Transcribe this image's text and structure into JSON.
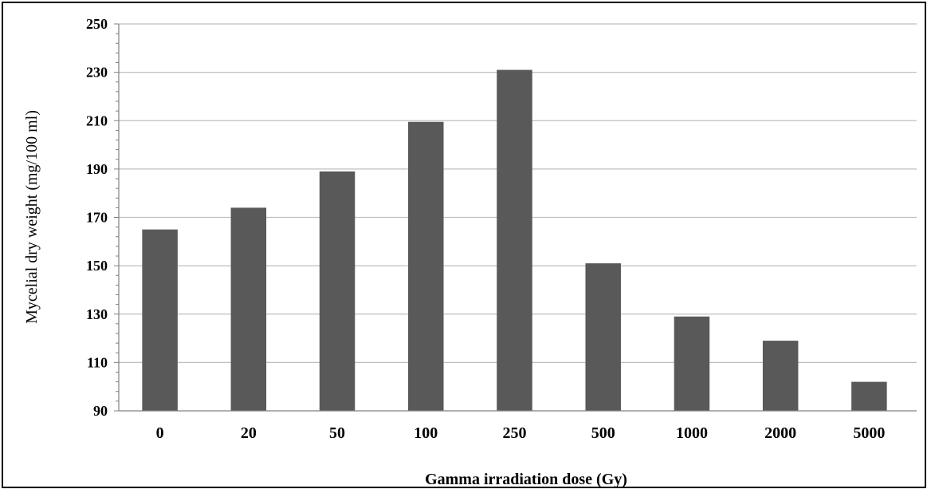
{
  "chart_data": {
    "type": "bar",
    "title": "",
    "xlabel": "Gamma irradiation dose (Gy)",
    "ylabel": "Mycelial dry weight (mg/100 ml)",
    "categories": [
      "0",
      "20",
      "50",
      "100",
      "250",
      "500",
      "1000",
      "2000",
      "5000"
    ],
    "values": [
      165,
      174,
      189,
      209.5,
      231,
      151,
      129,
      119,
      102
    ],
    "ylim": [
      90,
      250
    ],
    "yticks": [
      "90",
      "110",
      "130",
      "150",
      "170",
      "190",
      "210",
      "230",
      "250"
    ],
    "grid": true,
    "legend": "none",
    "colors": {
      "bar": "#595959",
      "grid": "#bfbfbf",
      "axis": "#808080"
    }
  }
}
